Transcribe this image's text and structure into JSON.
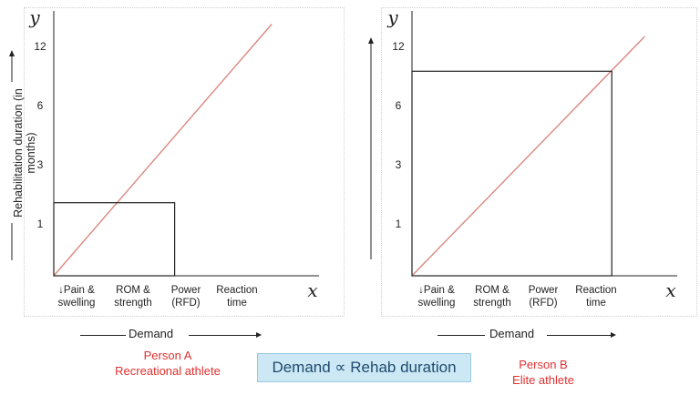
{
  "chart_data": [
    {
      "type": "line",
      "xlabel": "x",
      "ylabel": "y",
      "y_axis_title": "Rehabilitation duration (in months)",
      "y_ticks": [
        "12",
        "6",
        "3",
        "1"
      ],
      "categories": [
        "↓Pain & swelling",
        "ROM & strength",
        "Power (RFD)",
        "Reaction time"
      ],
      "category_lines": [
        [
          "↓Pain &",
          "swelling"
        ],
        [
          "ROM &",
          "strength"
        ],
        [
          "Power",
          "(RFD)"
        ],
        [
          "Reaction",
          "time"
        ]
      ],
      "series": [
        {
          "points": [
            [
              0,
              0
            ],
            [
              4.6,
              12.4
            ]
          ]
        }
      ],
      "box": {
        "x_end": 2.55,
        "y_level": 3.6
      },
      "x_axis_title": "Demand",
      "person": [
        "Person A",
        "Recreational athlete"
      ]
    },
    {
      "type": "line",
      "xlabel": "x",
      "ylabel": "y",
      "y_ticks": [
        "12",
        "6",
        "3",
        "1"
      ],
      "categories": [
        "↓Pain & swelling",
        "ROM & strength",
        "Power (RFD)",
        "Reaction time"
      ],
      "category_lines": [
        [
          "↓Pain &",
          "swelling"
        ],
        [
          "ROM &",
          "strength"
        ],
        [
          "Power",
          "(RFD)"
        ],
        [
          "Reaction",
          "time"
        ]
      ],
      "series": [
        {
          "points": [
            [
              0,
              0
            ],
            [
              4.6,
              12.4
            ]
          ]
        }
      ],
      "box": {
        "x_end": 3.95,
        "y_level": 10.6
      },
      "x_axis_title": "Demand",
      "person": [
        "Person B",
        "Elite athlete"
      ]
    }
  ],
  "formula": "Demand ∝ Rehab duration",
  "colors": {
    "trend": "#d98880",
    "person": "#e03030",
    "formula_bg": "#cde8f5"
  }
}
